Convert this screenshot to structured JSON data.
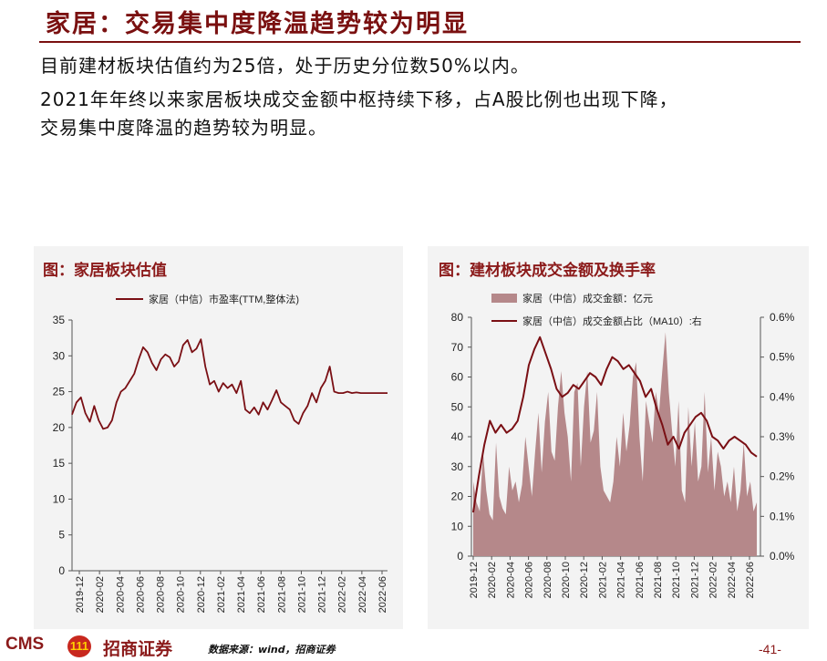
{
  "page": {
    "title": "家居：交易集中度降温趋势较为明显",
    "bullets": [
      "目前建材板块估值约为25倍，处于历史分位数50%以内。",
      "2021年年终以来家居板块成交金额中枢持续下移，占A股比例也出现下降，",
      "交易集中度降温的趋势较为明显。"
    ]
  },
  "footer": {
    "logo_text": "CMS",
    "logo_mark": "111",
    "brand": "招商证券",
    "source": "数据来源：wind，招商证券",
    "page_number": "-41-"
  },
  "colors": {
    "line": "#7a0f14",
    "area": "#b5888a",
    "title": "#7a1010",
    "panel_bg": "#f3f3f3"
  },
  "chart_data": [
    {
      "type": "line",
      "panel_title": "图：家居板块估值",
      "series": [
        {
          "name": "家居（中信）市盈率(TTM,整体法)",
          "x_index": [
            0,
            2,
            4,
            6,
            8,
            10,
            12,
            14,
            16,
            18,
            20,
            22,
            24,
            26,
            28,
            30,
            32,
            34,
            36,
            38,
            40,
            42,
            44,
            46,
            48,
            50,
            52,
            54,
            56,
            58,
            60,
            62,
            64,
            66,
            68,
            70,
            72,
            74,
            76,
            78,
            80,
            82,
            84,
            86,
            88,
            90,
            92,
            94,
            96,
            98,
            100,
            102,
            104,
            106,
            108,
            110,
            112,
            114,
            116,
            118,
            120,
            122,
            124,
            126,
            128,
            130,
            132,
            134,
            136,
            138,
            140,
            142
          ],
          "values": [
            21.8,
            23.5,
            24.2,
            22.0,
            20.8,
            23.0,
            21.0,
            19.8,
            20.0,
            21.0,
            23.5,
            25.0,
            25.5,
            26.5,
            27.5,
            29.5,
            31.2,
            30.5,
            29.0,
            28.0,
            29.5,
            30.2,
            29.8,
            28.5,
            29.2,
            31.5,
            32.2,
            30.5,
            31.0,
            32.3,
            28.5,
            26.0,
            26.5,
            25.0,
            26.2,
            25.5,
            26.0,
            24.8,
            26.5,
            22.5,
            22.0,
            22.8,
            21.8,
            23.5,
            22.5,
            23.8,
            25.2,
            23.5,
            23.0,
            22.5,
            21.0,
            20.5,
            22.0,
            23.0,
            24.8,
            23.5,
            25.5,
            26.5,
            28.5,
            25.0,
            24.8,
            24.8,
            25.0,
            24.8,
            24.9,
            24.8,
            24.8,
            24.8,
            24.8,
            24.8,
            24.8,
            24.8
          ]
        }
      ],
      "x_ticks": [
        "2019-12",
        "2020-02",
        "2020-04",
        "2020-06",
        "2020-08",
        "2020-10",
        "2020-12",
        "2021-02",
        "2021-04",
        "2021-06",
        "2021-08",
        "2021-10",
        "2021-12",
        "2022-02",
        "2022-04",
        "2022-06"
      ],
      "ylim": [
        0,
        35
      ],
      "y_ticks": [
        "0",
        "5",
        "10",
        "15",
        "20",
        "25",
        "30",
        "35"
      ]
    },
    {
      "type": "area",
      "panel_title": "图：建材板块成交金额及换手率",
      "series": [
        {
          "name": "家居（中信）成交金额：亿元",
          "axis": "left",
          "values": [
            25,
            18,
            15,
            35,
            22,
            14,
            12,
            38,
            20,
            16,
            14,
            30,
            22,
            25,
            18,
            24,
            40,
            30,
            20,
            35,
            48,
            28,
            45,
            55,
            35,
            32,
            50,
            62,
            48,
            40,
            25,
            55,
            58,
            30,
            50,
            62,
            38,
            42,
            55,
            30,
            22,
            20,
            18,
            25,
            40,
            30,
            48,
            35,
            44,
            60,
            65,
            40,
            25,
            52,
            45,
            38,
            55,
            48,
            62,
            75,
            55,
            42,
            30,
            52,
            22,
            18,
            50,
            30,
            45,
            25,
            30,
            55,
            28,
            40,
            22,
            35,
            30,
            20,
            25,
            18,
            30,
            15,
            22,
            38,
            20,
            25,
            15,
            18
          ]
        },
        {
          "name": "家居（中信）成交金额占比（MA10）:右",
          "axis": "right",
          "values": [
            0.11,
            0.2,
            0.28,
            0.34,
            0.31,
            0.33,
            0.31,
            0.32,
            0.34,
            0.4,
            0.48,
            0.52,
            0.55,
            0.51,
            0.47,
            0.42,
            0.4,
            0.41,
            0.43,
            0.42,
            0.44,
            0.46,
            0.45,
            0.43,
            0.47,
            0.5,
            0.49,
            0.47,
            0.48,
            0.46,
            0.44,
            0.4,
            0.42,
            0.37,
            0.33,
            0.28,
            0.3,
            0.27,
            0.31,
            0.33,
            0.35,
            0.36,
            0.34,
            0.3,
            0.29,
            0.27,
            0.29,
            0.3,
            0.29,
            0.28,
            0.26,
            0.25
          ]
        }
      ],
      "x_ticks": [
        "2019-12",
        "2020-02",
        "2020-04",
        "2020-06",
        "2020-08",
        "2020-10",
        "2020-12",
        "2021-02",
        "2021-04",
        "2021-06",
        "2021-08",
        "2021-10",
        "2021-12",
        "2022-02",
        "2022-04",
        "2022-06"
      ],
      "ylim": [
        0,
        80
      ],
      "y_ticks": [
        "0",
        "10",
        "20",
        "30",
        "40",
        "50",
        "60",
        "70",
        "80"
      ],
      "y2lim": [
        0,
        0.006
      ],
      "y2_ticks": [
        "0.0%",
        "0.1%",
        "0.2%",
        "0.3%",
        "0.4%",
        "0.5%",
        "0.6%"
      ]
    }
  ]
}
